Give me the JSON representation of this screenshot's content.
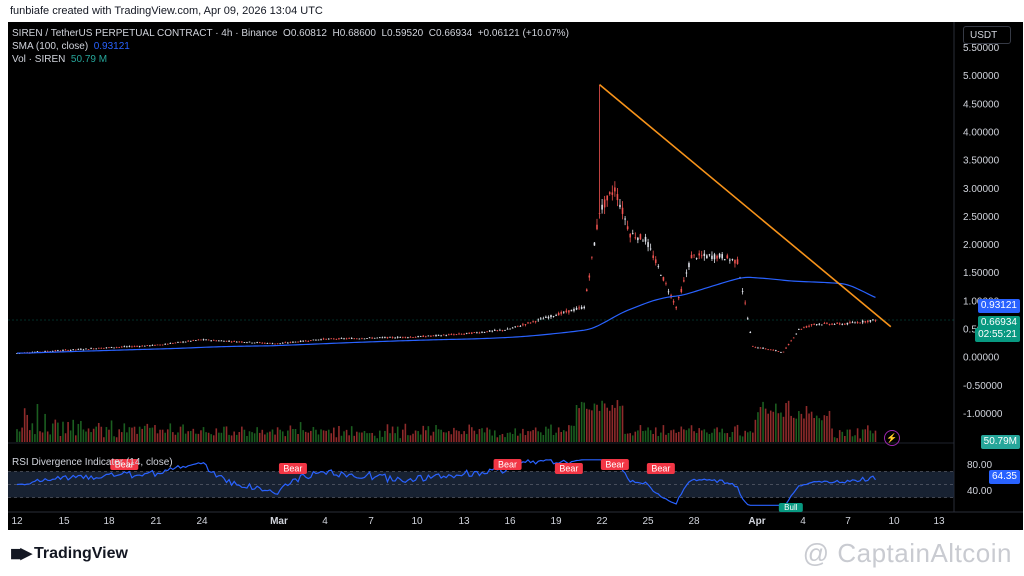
{
  "header": {
    "created_text": "funbiafe created with TradingView.com, Apr 09, 2026 13:04 UTC"
  },
  "legend": {
    "symbol": "SIREN / TetherUS PERPETUAL CONTRACT · 4h · Binance",
    "open_label": "O",
    "open": "0.60812",
    "high_label": "H",
    "high": "0.68600",
    "low_label": "L",
    "low": "0.59520",
    "close_label": "C",
    "close": "0.66934",
    "change": "+0.06121 (+10.07%)",
    "sma_label": "SMA (100, close)",
    "sma_value": "0.93121",
    "vol_label": "Vol · SIREN",
    "vol_value": "50.79 M",
    "rsi_label": "RSI Divergence Indicator (14, close)"
  },
  "currency_button": "USDT",
  "price_tags": {
    "sma": "0.93121",
    "close": "0.66934",
    "countdown": "02:55:21",
    "volume": "50.79M",
    "rsi": "64.35"
  },
  "signal_labels": {
    "bear": "Bear",
    "bull": "Bull"
  },
  "colors": {
    "up": "#e0e3eb",
    "down": "#ef5350",
    "sma": "#2962ff",
    "trendline": "#f7931a",
    "rsi": "#2962ff",
    "rsi_band": "#1e2a3f",
    "close_tag": "#089981",
    "vol_tag": "#26a69a",
    "bear": "#f23645",
    "bull": "#089981"
  },
  "footer": {
    "logo_text": "TradingView",
    "watermark": "@ CaptainAltcoin"
  },
  "chart_data": [
    {
      "type": "candlestick",
      "title": "SIREN / TetherUS PERPETUAL CONTRACT · 4h · Binance",
      "x_ticks": [
        "12",
        "15",
        "18",
        "21",
        "24",
        "Mar",
        "4",
        "7",
        "10",
        "13",
        "16",
        "19",
        "22",
        "25",
        "28",
        "Apr",
        "4",
        "7",
        "10",
        "13"
      ],
      "y_ticks": [
        "5.50000",
        "5.00000",
        "4.50000",
        "4.00000",
        "3.50000",
        "3.00000",
        "2.50000",
        "2.00000",
        "1.50000",
        "1.00000",
        "0.50000",
        "0.00000",
        "-0.50000",
        "-1.00000"
      ],
      "ylim": [
        -1.25,
        5.7
      ],
      "close_path": [
        [
          "12",
          0.08
        ],
        [
          "15",
          0.13
        ],
        [
          "18",
          0.18
        ],
        [
          "21",
          0.22
        ],
        [
          "24",
          0.32
        ],
        [
          "Mar",
          0.25
        ],
        [
          "4",
          0.33
        ],
        [
          "7",
          0.35
        ],
        [
          "10",
          0.37
        ],
        [
          "13",
          0.42
        ],
        [
          "16",
          0.5
        ],
        [
          "19",
          0.75
        ],
        [
          "21",
          0.9
        ],
        [
          "22",
          2.6
        ],
        [
          "23",
          3.0
        ],
        [
          "24",
          2.2
        ],
        [
          "25",
          2.1
        ],
        [
          "27",
          0.9
        ],
        [
          "28",
          1.8
        ],
        [
          "30",
          1.8
        ],
        [
          "31",
          1.7
        ],
        [
          "Apr",
          0.2
        ],
        [
          "3",
          0.1
        ],
        [
          "4",
          0.5
        ],
        [
          "5",
          0.6
        ],
        [
          "7",
          0.6
        ],
        [
          "9",
          0.67
        ]
      ],
      "peak_high": 4.85,
      "sma_100": {
        "name": "SMA (100, close)",
        "last": 0.93121
      },
      "trendline": {
        "from": [
          "22",
          4.85
        ],
        "to": [
          "10",
          0.55
        ]
      },
      "volume": {
        "name": "Vol · SIREN",
        "last": "50.79M"
      }
    },
    {
      "type": "line",
      "title": "RSI Divergence Indicator (14, close)",
      "y_ticks": [
        "80.00",
        "40.00"
      ],
      "band": [
        30,
        70
      ],
      "last": 64.35,
      "bear_signals": [
        "19",
        "2",
        "16",
        "20",
        "23",
        "26"
      ],
      "bull_signals": [
        "4"
      ]
    }
  ]
}
